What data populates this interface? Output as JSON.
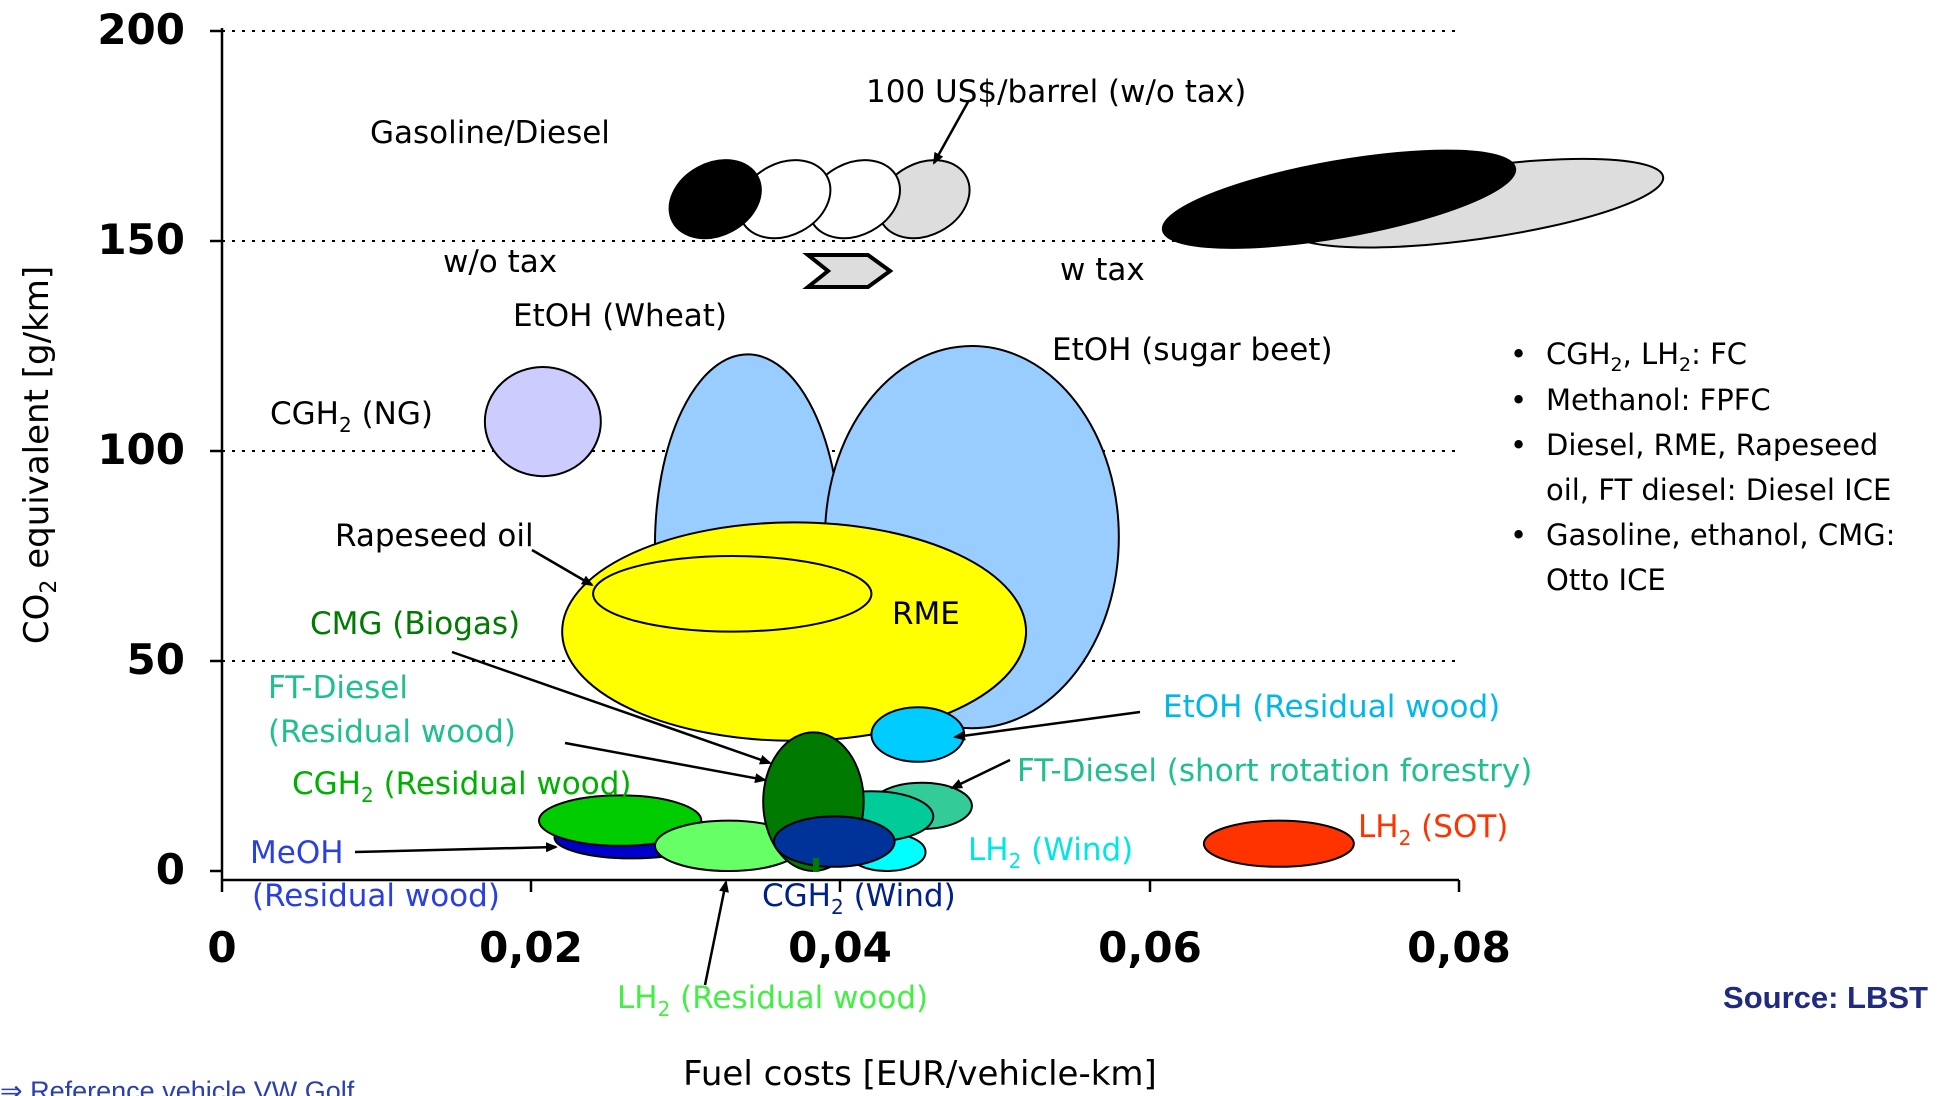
{
  "chart_data": {
    "type": "scatter",
    "xlabel": "Fuel costs [EUR/vehicle-km]",
    "ylabel_main": "CO",
    "ylabel_sub": "2",
    "ylabel_rest": " equivalent [g/km]",
    "xlim": [
      0,
      0.08
    ],
    "ylim": [
      0,
      200
    ],
    "x_ticks": [
      "0",
      "0,02",
      "0,04",
      "0,06",
      "0,08"
    ],
    "y_ticks": [
      "0",
      "50",
      "100",
      "150",
      "200"
    ],
    "gridlines_y": [
      50,
      100,
      150,
      200
    ],
    "series": [
      {
        "name": "Gasoline/Diesel w/o tax",
        "x_range": [
          0.029,
          0.047
        ],
        "y_range": [
          150,
          168
        ],
        "color": "#000000"
      },
      {
        "name": "Gasoline/Diesel w tax",
        "x_range": [
          0.06,
          0.094
        ],
        "y_range": [
          150,
          168
        ],
        "color": "#000000"
      },
      {
        "name": "EtOH (Wheat)",
        "x_range": [
          0.028,
          0.04
        ],
        "y_range": [
          32,
          123
        ],
        "color": "#99ccff"
      },
      {
        "name": "EtOH (sugar beet)",
        "x_range": [
          0.039,
          0.058
        ],
        "y_range": [
          34,
          125
        ],
        "color": "#99ccff"
      },
      {
        "name": "CGH2 (NG)",
        "x_range": [
          0.017,
          0.0245
        ],
        "y_range": [
          94,
          120
        ],
        "color": "#ccccff"
      },
      {
        "name": "RME",
        "x_range": [
          0.022,
          0.052
        ],
        "y_range": [
          31,
          83
        ],
        "color": "#ffff00"
      },
      {
        "name": "Rapeseed oil",
        "x_range": [
          0.024,
          0.042
        ],
        "y_range": [
          57,
          75
        ],
        "color": "#ffff00"
      },
      {
        "name": "CMG (Biogas)",
        "x_range": [
          0.035,
          0.0415
        ],
        "y_range": [
          0,
          33
        ],
        "color": "#007a00"
      },
      {
        "name": "EtOH (Residual wood)",
        "x_range": [
          0.042,
          0.048
        ],
        "y_range": [
          26,
          39
        ],
        "color": "#00ccff"
      },
      {
        "name": "FT-Diesel (short rotation forestry)",
        "x_range": [
          0.042,
          0.0485
        ],
        "y_range": [
          10,
          21
        ],
        "color": "#33cc99"
      },
      {
        "name": "FT-Diesel (Residual wood)",
        "x_range": [
          0.038,
          0.046
        ],
        "y_range": [
          7,
          19
        ],
        "color": "#00cc99"
      },
      {
        "name": "CGH2 (Residual wood)",
        "x_range": [
          0.0205,
          0.031
        ],
        "y_range": [
          6,
          18
        ],
        "color": "#00cc00"
      },
      {
        "name": "MeOH (Residual wood)",
        "x_range": [
          0.0215,
          0.0315
        ],
        "y_range": [
          3,
          13
        ],
        "color": "#0000cc"
      },
      {
        "name": "LH2 (Residual wood)",
        "x_range": [
          0.028,
          0.0375
        ],
        "y_range": [
          0,
          12
        ],
        "color": "#66ff66"
      },
      {
        "name": "LH2 (Wind)",
        "x_range": [
          0.0405,
          0.0455
        ],
        "y_range": [
          0,
          9
        ],
        "color": "#00ffff"
      },
      {
        "name": "CGH2 (Wind)",
        "x_range": [
          0.0357,
          0.0435
        ],
        "y_range": [
          1,
          13
        ],
        "color": "#003399"
      },
      {
        "name": "LH2 (SOT)",
        "x_range": [
          0.0635,
          0.0732
        ],
        "y_range": [
          1,
          12
        ],
        "color": "#ff3300"
      }
    ]
  },
  "labels": {
    "gasoline_diesel": "Gasoline/Diesel",
    "barrel": "100 US$/barrel (w/o tax)",
    "wo_tax": "w/o tax",
    "w_tax": "w tax",
    "etoh_wheat": "EtOH (Wheat)",
    "etoh_sugar_beet": "EtOH (sugar beet)",
    "cgh2_ng_a": "CGH",
    "cgh2_ng_sub": "2",
    "cgh2_ng_b": " (NG)",
    "rapeseed_oil": "Rapeseed oil",
    "rme": "RME",
    "cmg_biogas": "CMG (Biogas)",
    "ft_diesel_rw_1": "FT-Diesel",
    "ft_diesel_rw_2": "(Residual wood)",
    "cgh2_rw_a": "CGH",
    "cgh2_rw_sub": "2",
    "cgh2_rw_b": " (Residual wood)",
    "meoh_1": "MeOH",
    "meoh_2": "(Residual wood)",
    "etoh_rw": "EtOH (Residual wood)",
    "ft_diesel_srf": "FT-Diesel (short rotation forestry)",
    "lh2_wind_a": "LH",
    "lh2_wind_sub": "2",
    "lh2_wind_b": " (Wind)",
    "lh2_sot_a": "LH",
    "lh2_sot_sub": "2",
    "lh2_sot_b": " (SOT)",
    "cgh2_wind_a": "CGH",
    "cgh2_wind_sub": "2",
    "cgh2_wind_b": " (Wind)",
    "lh2_rw_a": "LH",
    "lh2_rw_sub": "2",
    "lh2_rw_b": " (Residual wood)"
  },
  "notes": {
    "n1_a": "CGH",
    "n1_sub1": "2",
    "n1_b": ", LH",
    "n1_sub2": "2",
    "n1_c": ": FC",
    "n2": "Methanol: FPFC",
    "n3_line1": "Diesel, RME, Rapeseed",
    "n3_line2": "oil, FT diesel: Diesel ICE",
    "n4_line1": "Gasoline, ethanol, CMG:",
    "n4_line2": "Otto ICE"
  },
  "source": "Source:   LBST",
  "reference": "⇒ Reference vehicle VW Golf"
}
